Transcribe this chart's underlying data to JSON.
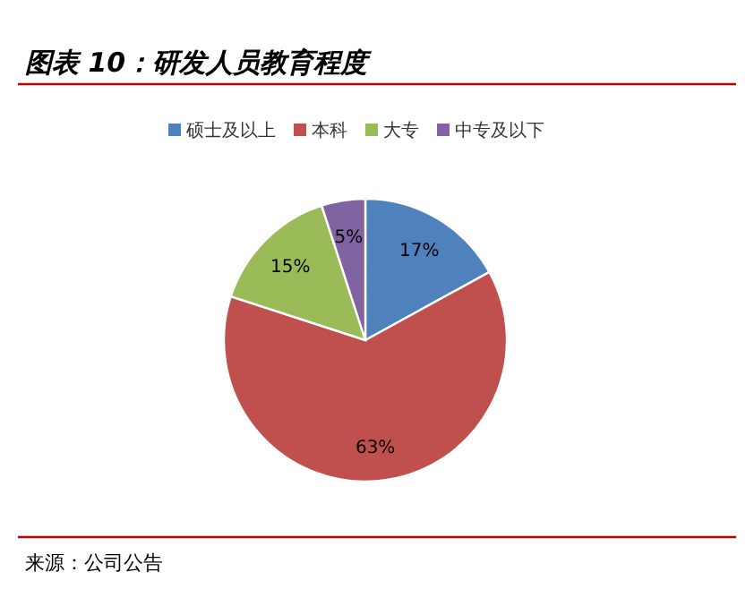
{
  "chart_data": {
    "type": "pie",
    "title": "图表 10：研发人员教育程度",
    "categories": [
      "硕士及以上",
      "本科",
      "大专",
      "中专及以下"
    ],
    "values": [
      17,
      63,
      15,
      5
    ],
    "colors": [
      "#4f81bd",
      "#c0504d",
      "#9bbb59",
      "#8064a2"
    ],
    "value_labels": [
      "17%",
      "63%",
      "15%",
      "5%"
    ],
    "legend": "top",
    "annotations": [
      "来源：公司公告"
    ]
  }
}
